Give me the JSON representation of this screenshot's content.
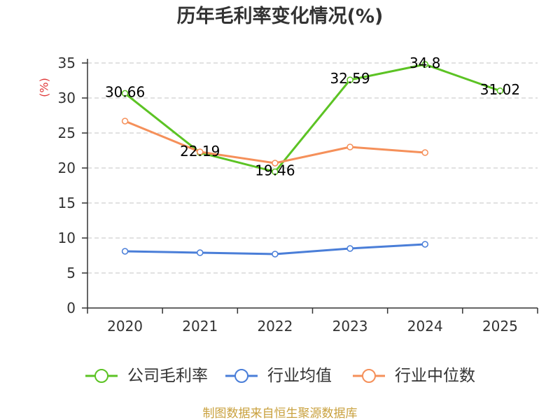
{
  "chart_data": {
    "type": "line",
    "title": "历年毛利率变化情况(%)",
    "xlabel": "",
    "ylabel": "(%)",
    "categories": [
      "2020",
      "2021",
      "2022",
      "2023",
      "2024",
      "2025"
    ],
    "ylim": [
      0,
      35
    ],
    "yticks": [
      0,
      5,
      10,
      15,
      20,
      25,
      30,
      35
    ],
    "grid": true,
    "legend": "bottom",
    "series": [
      {
        "name": "公司毛利率",
        "color": "#5cc324",
        "values": [
          30.66,
          22.19,
          19.46,
          32.59,
          34.8,
          31.02
        ],
        "show_labels": true
      },
      {
        "name": "行业均值",
        "color": "#4a7ed8",
        "values": [
          8.1,
          7.9,
          7.7,
          8.5,
          9.1,
          null
        ],
        "show_labels": false
      },
      {
        "name": "行业中位数",
        "color": "#f5905a",
        "values": [
          26.7,
          22.3,
          20.7,
          23.0,
          22.2,
          null
        ],
        "show_labels": false
      }
    ]
  },
  "colors": {
    "ylabel": "#e03a3a",
    "footer": "#c9a13e"
  },
  "footer": {
    "source": "制图数据来自恒生聚源数据库"
  }
}
